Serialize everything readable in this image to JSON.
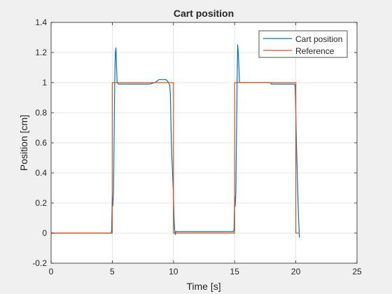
{
  "chart_data": {
    "type": "line",
    "title": "Cart position",
    "xlabel": "Time [s]",
    "ylabel": "Position [cm]",
    "xlim": [
      0,
      25
    ],
    "ylim": [
      -0.2,
      1.4
    ],
    "xticks": [
      0,
      5,
      10,
      15,
      20,
      25
    ],
    "yticks": [
      -0.2,
      0,
      0.2,
      0.4,
      0.6,
      0.8,
      1,
      1.2,
      1.4
    ],
    "xtick_labels": [
      "0",
      "5",
      "10",
      "15",
      "20",
      "25"
    ],
    "ytick_labels": [
      "-0.2",
      "0",
      "0.2",
      "0.4",
      "0.6",
      "0.8",
      "1",
      "1.2",
      "1.4"
    ],
    "grid": true,
    "legend_location": "top-right",
    "series": [
      {
        "name": "Cart position",
        "color": "#0072BD",
        "x": [
          0,
          4.9,
          4.95,
          5.0,
          5.05,
          5.1,
          5.2,
          5.25,
          5.3,
          5.35,
          5.4,
          5.5,
          5.6,
          6.0,
          7.0,
          8.0,
          8.5,
          8.8,
          9.0,
          9.4,
          9.6,
          9.7,
          9.75,
          9.8,
          9.85,
          9.9,
          10.0,
          10.05,
          10.1,
          10.15,
          10.2,
          10.3,
          12.0,
          14.9,
          14.95,
          15.0,
          15.05,
          15.1,
          15.2,
          15.25,
          15.3,
          15.35,
          15.4,
          15.5,
          15.6,
          16.0,
          17.0,
          17.9,
          18.0,
          19.0,
          19.9,
          19.95,
          20.0,
          20.05,
          20.1,
          20.15,
          20.2,
          20.25,
          20.3
        ],
        "y": [
          0,
          0,
          0.02,
          0.24,
          0.18,
          0.28,
          1.0,
          1.2,
          1.23,
          1.1,
          1.0,
          0.99,
          0.99,
          0.99,
          0.99,
          0.99,
          1.0,
          1.02,
          1.02,
          1.02,
          1.0,
          0.98,
          0.92,
          0.7,
          0.55,
          0.45,
          0.25,
          0.1,
          0.02,
          -0.01,
          0.01,
          0.01,
          0.01,
          0.01,
          0.02,
          0.24,
          0.18,
          0.28,
          1.0,
          1.25,
          1.2,
          1.1,
          1.0,
          1.0,
          1.0,
          1.0,
          1.0,
          1.0,
          0.99,
          0.99,
          0.99,
          0.97,
          0.78,
          0.6,
          0.45,
          0.3,
          0.15,
          0.05,
          -0.03
        ]
      },
      {
        "name": "Reference",
        "color": "#D95319",
        "x": [
          0,
          5,
          5,
          10,
          10,
          15,
          15,
          20,
          20,
          20.3
        ],
        "y": [
          0,
          0,
          1,
          1,
          0,
          0,
          1,
          1,
          0,
          0
        ]
      }
    ]
  }
}
